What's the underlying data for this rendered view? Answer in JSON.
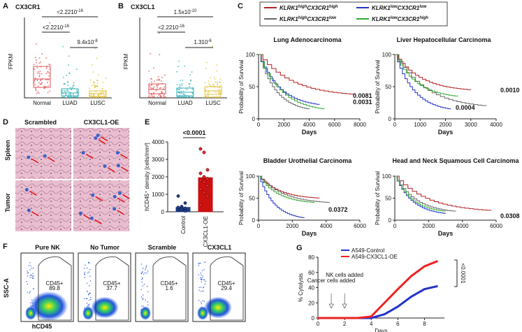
{
  "panels": {
    "a": {
      "label": "A",
      "title": "CX3CR1",
      "y_label": "FPKM",
      "categories": [
        "Normal",
        "LUAD",
        "LUSC"
      ],
      "p_values": [
        {
          "base": "<2.2210",
          "exp": "-16"
        },
        {
          "base": "<2.2210",
          "exp": "-16"
        },
        {
          "base": "9.4x10",
          "exp": "-8"
        }
      ]
    },
    "b": {
      "label": "B",
      "title": "CX3CL1",
      "y_label": "FPKM",
      "categories": [
        "Normal",
        "LUAD",
        "LUSC"
      ],
      "p_values": [
        {
          "base": "1.5x10",
          "exp": "-10"
        },
        {
          "base": "<2.2210",
          "exp": "-16"
        },
        {
          "base": "1.310",
          "exp": "-6"
        }
      ]
    },
    "c": {
      "label": "C",
      "legend": [
        {
          "gene1": "KLRK1",
          "level1": "high",
          "gene2": "CX3CR1",
          "level2": "high",
          "color": "#b22222"
        },
        {
          "gene1": "KLRK1",
          "level1": "high",
          "gene2": "CX3CR1",
          "level2": "low",
          "color": "#666666"
        },
        {
          "gene1": "KLRK1",
          "level1": "low",
          "gene2": "CX3CR1",
          "level2": "low",
          "color": "#2233cc"
        },
        {
          "gene1": "KLRK1",
          "level1": "low",
          "gene2": "CX3CR1",
          "level2": "high",
          "color": "#33aa33"
        }
      ],
      "plots": [
        {
          "title": "Lung Adenocarcinoma",
          "y_label": "Probability of Survival",
          "x_label": "Days",
          "yticks": [
            "0",
            "50",
            "100"
          ],
          "xticks": [
            "0",
            "2000",
            "4000",
            "6000",
            "8000"
          ],
          "p_values": [
            "0.0081",
            "0.0031"
          ]
        },
        {
          "title": "Liver Hepatocellular Carcinoma",
          "y_label": "Probability of Survival",
          "x_label": "Days",
          "yticks": [
            "0",
            "50",
            "100"
          ],
          "xticks": [
            "0",
            "1000",
            "2000",
            "3000",
            "4000"
          ],
          "p_values": [
            "0.0010",
            "0.0004"
          ]
        },
        {
          "title": "Bladder Urothelial Carcinoma",
          "y_label": "Probability of Survival",
          "x_label": "Days",
          "yticks": [
            "0",
            "50",
            "100"
          ],
          "xticks": [
            "0",
            "2000",
            "4000",
            "6000"
          ],
          "p_values": [
            "0.0372"
          ]
        },
        {
          "title": "Head and Neck Squamous Cell Carcinoma",
          "y_label": "Probability of Survival",
          "x_label": "Days",
          "yticks": [
            "0",
            "50",
            "100"
          ],
          "xticks": [
            "0",
            "2000",
            "4000",
            "6000"
          ],
          "p_values": [
            "0.0308"
          ]
        }
      ]
    },
    "d": {
      "label": "D",
      "columns": [
        "Scrambled",
        "CX3CL1-OE"
      ],
      "rows": [
        "Spleen",
        "Tumor"
      ]
    },
    "e": {
      "label": "E",
      "y_label": "hCD45⁺ density [cells/mm²]",
      "categories": [
        "Control",
        "CX3CL1-OE"
      ],
      "values": [
        250,
        1950
      ],
      "colors": [
        "#1f3f8f",
        "#cc1111"
      ],
      "points": [
        [
          100,
          150,
          200,
          250,
          300,
          500,
          900,
          150,
          50
        ],
        [
          3600,
          3400,
          2400,
          2200,
          2000,
          1900,
          1800,
          1700,
          1500,
          1300,
          1100,
          900,
          400
        ]
      ],
      "ylim": [
        0,
        4000
      ],
      "yticks": [
        0,
        1000,
        2000,
        3000,
        4000
      ],
      "p_value": "<0.0001"
    },
    "f": {
      "label": "F",
      "titles": [
        "Pure NK",
        "No Tumor",
        "Scramble",
        "CX3CL1"
      ],
      "gate_label": "CD45+",
      "gate_values": [
        "89.8",
        "37.7",
        "1.6",
        "29.4"
      ],
      "y_label": "SSC-A",
      "x_label": "hCD45"
    },
    "g": {
      "label": "G",
      "y_label": "% Cytolysis",
      "x_label": "Days",
      "x": [
        0,
        1,
        2,
        3,
        4,
        5,
        6,
        7,
        8,
        9
      ],
      "series": [
        {
          "name": "A549-Control",
          "color": "#2233cc",
          "values": [
            0,
            0,
            0,
            0,
            0,
            5,
            15,
            28,
            38,
            42
          ]
        },
        {
          "name": "A549-CX3CL1-OE",
          "color": "#ee2222",
          "values": [
            0,
            0,
            0,
            0,
            2,
            20,
            38,
            55,
            68,
            75
          ]
        }
      ],
      "xlim": [
        0,
        9.5
      ],
      "ylim": [
        0,
        80
      ],
      "xticks": [
        0,
        2,
        4,
        6,
        8
      ],
      "yticks": [
        0,
        20,
        40,
        60,
        80
      ],
      "annotations": [
        "Cancer cells added",
        "NK cells added"
      ],
      "p_value": "<0.0001"
    }
  }
}
